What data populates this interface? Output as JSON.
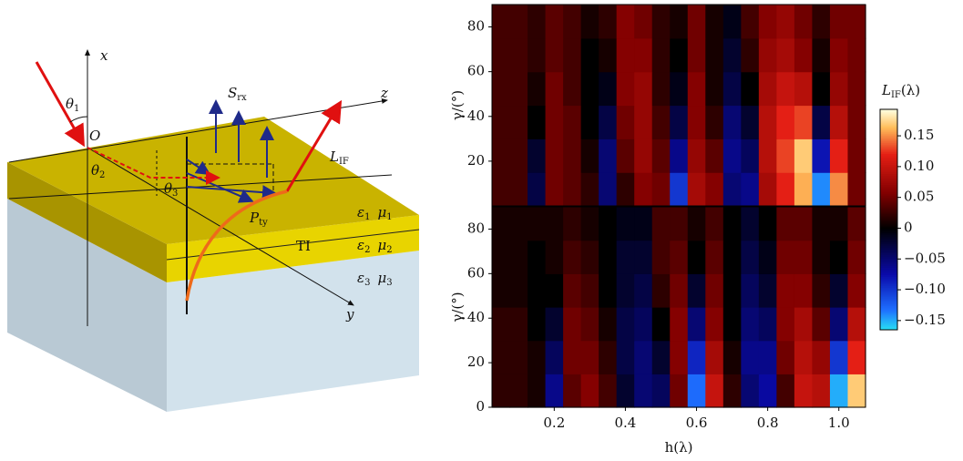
{
  "diagram": {
    "x_axis": "x",
    "y_axis": "y",
    "z_axis": "z",
    "origin": "O",
    "theta1": {
      "base": "θ",
      "sub": "1"
    },
    "theta2": {
      "base": "θ",
      "sub": "2"
    },
    "theta3": {
      "base": "θ",
      "sub": "3"
    },
    "s_rx": {
      "base": "S",
      "sub": "rx"
    },
    "l_if": {
      "base": "L",
      "sub": "IF"
    },
    "p_ty": {
      "base": "P",
      "sub": "ty"
    },
    "eps1": {
      "base": "ε",
      "sub": "1"
    },
    "mu1": {
      "base": "μ",
      "sub": "1"
    },
    "ti": "TI",
    "eps2": {
      "base": "ε",
      "sub": "2"
    },
    "mu2": {
      "base": "μ",
      "sub": "2"
    },
    "eps3": {
      "base": "ε",
      "sub": "3"
    },
    "mu3": {
      "base": "μ",
      "sub": "3"
    }
  },
  "chart_data": [
    {
      "type": "heatmap",
      "ylabel": "γ/(°)",
      "x": [
        0.05,
        0.1,
        0.15,
        0.2,
        0.25,
        0.3,
        0.35,
        0.4,
        0.45,
        0.5,
        0.55,
        0.6,
        0.65,
        0.7,
        0.75,
        0.8,
        0.85,
        0.9,
        0.95,
        1.0,
        1.05
      ],
      "y": [
        7.5,
        22.5,
        37.5,
        52.5,
        67.5,
        82.5
      ],
      "values": [
        [
          0.03,
          0.03,
          -0.03,
          0.05,
          0.04,
          0.02,
          -0.05,
          0.02,
          0.06,
          0.05,
          -0.1,
          0.08,
          0.06,
          -0.05,
          -0.06,
          0.08,
          0.12,
          0.16,
          -0.14,
          0.15,
          0.05
        ],
        [
          0.03,
          0.03,
          -0.02,
          0.05,
          0.04,
          0.01,
          -0.05,
          0.04,
          0.07,
          0.04,
          -0.06,
          0.07,
          0.04,
          -0.06,
          -0.04,
          0.09,
          0.13,
          0.17,
          -0.08,
          0.12,
          0.05
        ],
        [
          0.03,
          0.03,
          0.0,
          0.05,
          0.04,
          0.0,
          -0.03,
          0.05,
          0.07,
          0.03,
          -0.03,
          0.06,
          0.02,
          -0.05,
          -0.02,
          0.09,
          0.12,
          0.13,
          -0.03,
          0.09,
          0.05
        ],
        [
          0.03,
          0.03,
          0.01,
          0.05,
          0.03,
          0.0,
          -0.01,
          0.06,
          0.07,
          0.02,
          -0.01,
          0.06,
          0.01,
          -0.03,
          0.0,
          0.08,
          0.1,
          0.09,
          0.0,
          0.07,
          0.05
        ],
        [
          0.03,
          0.03,
          0.02,
          0.04,
          0.03,
          0.0,
          0.01,
          0.06,
          0.06,
          0.02,
          0.0,
          0.05,
          0.01,
          -0.02,
          0.02,
          0.07,
          0.08,
          0.06,
          0.01,
          0.06,
          0.05
        ],
        [
          0.03,
          0.03,
          0.02,
          0.04,
          0.03,
          0.01,
          0.02,
          0.06,
          0.05,
          0.02,
          0.01,
          0.05,
          0.01,
          -0.01,
          0.03,
          0.06,
          0.07,
          0.05,
          0.02,
          0.05,
          0.05
        ]
      ],
      "xlim": [
        0.025,
        1.075
      ],
      "ylim": [
        0,
        90
      ],
      "yticks": [
        20,
        40,
        60,
        80
      ]
    },
    {
      "type": "heatmap",
      "ylabel": "γ/(°)",
      "xlabel": "h(λ)",
      "x": [
        0.05,
        0.1,
        0.15,
        0.2,
        0.25,
        0.3,
        0.35,
        0.4,
        0.45,
        0.5,
        0.55,
        0.6,
        0.65,
        0.7,
        0.75,
        0.8,
        0.85,
        0.9,
        0.95,
        1.0,
        1.05
      ],
      "y": [
        7.5,
        22.5,
        37.5,
        52.5,
        67.5,
        82.5
      ],
      "values": [
        [
          0.02,
          0.02,
          0.01,
          -0.06,
          0.04,
          0.06,
          0.03,
          -0.02,
          -0.05,
          -0.04,
          0.05,
          -0.13,
          0.1,
          0.02,
          -0.05,
          -0.07,
          0.03,
          0.1,
          0.09,
          -0.15,
          0.17
        ],
        [
          0.02,
          0.02,
          0.01,
          -0.04,
          0.05,
          0.05,
          0.02,
          -0.03,
          -0.05,
          -0.02,
          0.06,
          -0.09,
          0.08,
          0.01,
          -0.06,
          -0.06,
          0.05,
          0.09,
          0.07,
          -0.1,
          0.12
        ],
        [
          0.02,
          0.02,
          0.0,
          -0.02,
          0.05,
          0.04,
          0.01,
          -0.03,
          -0.04,
          0.0,
          0.06,
          -0.05,
          0.06,
          0.0,
          -0.05,
          -0.04,
          0.06,
          0.08,
          0.04,
          -0.05,
          0.09
        ],
        [
          0.01,
          0.01,
          0.0,
          0.0,
          0.04,
          0.03,
          0.0,
          -0.02,
          -0.03,
          0.02,
          0.05,
          -0.02,
          0.05,
          0.0,
          -0.04,
          -0.02,
          0.06,
          0.06,
          0.02,
          -0.02,
          0.06
        ],
        [
          0.01,
          0.01,
          0.0,
          0.01,
          0.03,
          0.02,
          0.0,
          -0.02,
          -0.02,
          0.03,
          0.04,
          0.0,
          0.04,
          0.0,
          -0.03,
          -0.01,
          0.05,
          0.05,
          0.01,
          0.0,
          0.05
        ],
        [
          0.01,
          0.01,
          0.01,
          0.01,
          0.02,
          0.01,
          0.0,
          -0.01,
          -0.01,
          0.03,
          0.03,
          0.01,
          0.03,
          0.0,
          -0.02,
          0.0,
          0.04,
          0.04,
          0.01,
          0.01,
          0.04
        ]
      ],
      "xlim": [
        0.025,
        1.075
      ],
      "ylim": [
        0,
        90
      ],
      "yticks": [
        0,
        20,
        40,
        60,
        80
      ],
      "xticks": [
        0.2,
        0.4,
        0.6,
        0.8,
        {
          "value": 1,
          "label": "1.0"
        }
      ]
    }
  ],
  "colorbar": {
    "label": {
      "base": "L",
      "sub": "IF",
      "rest": "(λ)"
    },
    "clim": [
      -0.165,
      0.193
    ],
    "ticks": [
      0.15,
      {
        "value": 0.1,
        "label": "0.10"
      },
      0.05,
      0,
      {
        "value": -0.05,
        "label": "−0.05"
      },
      {
        "value": -0.1,
        "label": "−0.10"
      },
      {
        "value": -0.15,
        "label": "−0.15"
      }
    ]
  }
}
